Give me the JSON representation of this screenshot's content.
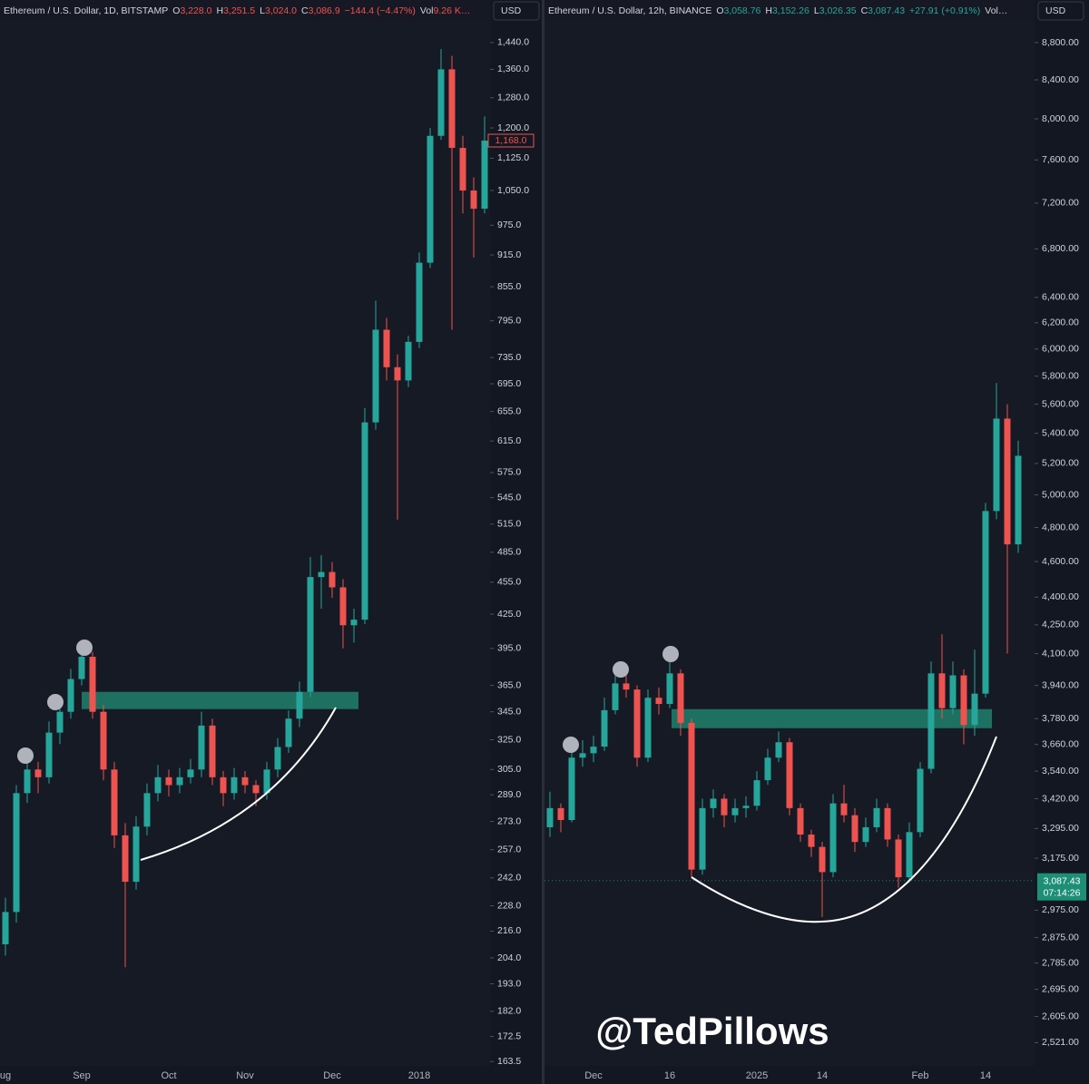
{
  "chart_data": [
    {
      "type": "candlestick",
      "title": "Ethereum / U.S. Dollar, 1D, BITSTAMP",
      "currency": "USD",
      "ohlc": [
        {
          "key": "O",
          "value": "3,228.0"
        },
        {
          "key": "H",
          "value": "3,251.5"
        },
        {
          "key": "L",
          "value": "3,024.0"
        },
        {
          "key": "C",
          "value": "3,086.9"
        }
      ],
      "change": "−144.4 (−4.47%)",
      "volume_label": "Vol",
      "volume": "9.26 K…",
      "header_color": "#ef5350",
      "up_color": "#26a69a",
      "down_color": "#ef5350",
      "log_scale": true,
      "categories": [
        "ug",
        null,
        null,
        null,
        null,
        null,
        null,
        "Sep",
        null,
        null,
        null,
        null,
        null,
        null,
        null,
        "Oct",
        null,
        null,
        null,
        null,
        null,
        null,
        "Nov",
        null,
        null,
        null,
        null,
        null,
        null,
        null,
        "Dec",
        null,
        null,
        null,
        null,
        null,
        null,
        null,
        "2018",
        null,
        null,
        null,
        null,
        null,
        null
      ],
      "open": [
        210,
        225,
        290,
        305,
        300,
        330,
        345,
        370,
        388,
        345,
        305,
        265,
        240,
        270,
        290,
        300,
        295,
        300,
        305,
        335,
        300,
        290,
        300,
        295,
        290,
        305,
        320,
        340,
        360,
        460,
        465,
        450,
        415,
        420,
        640,
        780,
        720,
        700,
        760,
        900,
        1180,
        1360,
        1150,
        1050,
        1010
      ],
      "high": [
        232,
        295,
        312,
        310,
        338,
        352,
        378,
        400,
        392,
        350,
        310,
        272,
        276,
        296,
        308,
        305,
        306,
        312,
        345,
        340,
        304,
        306,
        304,
        298,
        310,
        326,
        346,
        368,
        480,
        482,
        475,
        458,
        430,
        660,
        830,
        800,
        740,
        770,
        920,
        1200,
        1420,
        1400,
        1180,
        1080,
        1230
      ],
      "low": [
        205,
        220,
        284,
        290,
        296,
        322,
        340,
        365,
        340,
        298,
        258,
        200,
        236,
        265,
        285,
        288,
        290,
        296,
        300,
        295,
        282,
        286,
        290,
        282,
        286,
        300,
        316,
        334,
        356,
        430,
        440,
        395,
        400,
        416,
        630,
        700,
        520,
        690,
        750,
        890,
        1170,
        780,
        1000,
        910,
        1000
      ],
      "close": [
        225,
        290,
        305,
        300,
        330,
        345,
        370,
        388,
        345,
        305,
        265,
        240,
        270,
        290,
        300,
        295,
        300,
        305,
        335,
        300,
        290,
        300,
        295,
        290,
        305,
        320,
        340,
        360,
        460,
        465,
        450,
        415,
        420,
        640,
        780,
        720,
        700,
        760,
        900,
        1180,
        1360,
        1150,
        1050,
        1010,
        1168
      ],
      "zone": [
        347,
        360
      ],
      "last_price": {
        "value": 1168,
        "label": "1,168.0"
      },
      "ylim": [
        162,
        1488
      ],
      "yticks": [
        {
          "value": 1440,
          "label": "1,440.0"
        },
        {
          "value": 1360,
          "label": "1,360.0"
        },
        {
          "value": 1280,
          "label": "1,280.0"
        },
        {
          "value": 1200,
          "label": "1,200.0"
        },
        {
          "value": 1125,
          "label": "1,125.0"
        },
        {
          "value": 1050,
          "label": "1,050.0"
        },
        {
          "value": 975,
          "label": "975.0"
        },
        {
          "value": 915,
          "label": "915.0"
        },
        {
          "value": 855,
          "label": "855.0"
        },
        {
          "value": 795,
          "label": "795.0"
        },
        {
          "value": 735,
          "label": "735.0"
        },
        {
          "value": 695,
          "label": "695.0"
        },
        {
          "value": 655,
          "label": "655.0"
        },
        {
          "value": 615,
          "label": "615.0"
        },
        {
          "value": 575,
          "label": "575.0"
        },
        {
          "value": 545,
          "label": "545.0"
        },
        {
          "value": 515,
          "label": "515.0"
        },
        {
          "value": 485,
          "label": "485.0"
        },
        {
          "value": 455,
          "label": "455.0"
        },
        {
          "value": 425,
          "label": "425.0"
        },
        {
          "value": 395,
          "label": "395.0"
        },
        {
          "value": 365,
          "label": "365.0"
        },
        {
          "value": 345,
          "label": "345.0"
        },
        {
          "value": 325,
          "label": "325.0"
        },
        {
          "value": 305,
          "label": "305.0"
        },
        {
          "value": 289,
          "label": "289.0"
        },
        {
          "value": 273,
          "label": "273.0"
        },
        {
          "value": 257,
          "label": "257.0"
        },
        {
          "value": 242,
          "label": "242.0"
        },
        {
          "value": 228,
          "label": "228.0"
        },
        {
          "value": 216,
          "label": "216.0"
        },
        {
          "value": 204,
          "label": "204.0"
        },
        {
          "value": 193,
          "label": "193.0"
        },
        {
          "value": 182,
          "label": "182.0"
        },
        {
          "value": 172.5,
          "label": "172.5"
        },
        {
          "value": 163.5,
          "label": "163.5"
        }
      ]
    },
    {
      "type": "candlestick",
      "title": "Ethereum / U.S. Dollar, 12h, BINANCE",
      "currency": "USD",
      "ohlc": [
        {
          "key": "O",
          "value": "3,058.76"
        },
        {
          "key": "H",
          "value": "3,152.26"
        },
        {
          "key": "L",
          "value": "3,026.35"
        },
        {
          "key": "C",
          "value": "3,087.43"
        }
      ],
      "change": "+27.91 (+0.91%)",
      "volume_label": "Vol…",
      "header_color": "#26a69a",
      "up_color": "#26a69a",
      "down_color": "#ef5350",
      "log_scale": true,
      "categories": [
        null,
        null,
        null,
        null,
        "Dec",
        null,
        null,
        null,
        null,
        null,
        null,
        "16",
        null,
        null,
        null,
        null,
        null,
        null,
        null,
        "2025",
        null,
        null,
        null,
        null,
        null,
        "14",
        null,
        null,
        null,
        null,
        null,
        null,
        null,
        null,
        "Feb",
        null,
        null,
        null,
        null,
        null,
        "14",
        null,
        null,
        null
      ],
      "open": [
        3300,
        3380,
        3330,
        3600,
        3620,
        3650,
        3820,
        3950,
        3920,
        3600,
        3880,
        3850,
        4000,
        3760,
        3130,
        3380,
        3420,
        3350,
        3380,
        3390,
        3500,
        3600,
        3670,
        3380,
        3270,
        3220,
        3120,
        3400,
        3350,
        3240,
        3300,
        3380,
        3250,
        3100,
        3280,
        3550,
        4000,
        3830,
        3990,
        3750,
        3900,
        4900,
        5500,
        4700
      ],
      "high": [
        3450,
        3400,
        3640,
        3680,
        3700,
        3880,
        4040,
        4010,
        3940,
        3920,
        3930,
        4080,
        4020,
        3780,
        3420,
        3460,
        3440,
        3420,
        3430,
        3540,
        3640,
        3720,
        3690,
        3400,
        3290,
        3240,
        3440,
        3480,
        3380,
        3340,
        3420,
        3400,
        3270,
        3320,
        3580,
        4060,
        4200,
        4060,
        4020,
        4120,
        4950,
        5750,
        5600,
        5350
      ],
      "low": [
        3260,
        3280,
        3320,
        3560,
        3580,
        3630,
        3800,
        3880,
        3560,
        3580,
        3800,
        3830,
        3700,
        3100,
        3110,
        3340,
        3300,
        3320,
        3340,
        3370,
        3480,
        3580,
        3350,
        3240,
        3180,
        2950,
        3100,
        3320,
        3200,
        3220,
        3280,
        3220,
        3060,
        3080,
        3260,
        3530,
        3780,
        3800,
        3660,
        3700,
        3880,
        4850,
        4100,
        4650
      ],
      "close": [
        3380,
        3330,
        3600,
        3620,
        3650,
        3820,
        3950,
        3920,
        3600,
        3880,
        3850,
        4000,
        3760,
        3130,
        3380,
        3420,
        3350,
        3380,
        3390,
        3500,
        3600,
        3670,
        3380,
        3270,
        3220,
        3120,
        3400,
        3350,
        3240,
        3300,
        3380,
        3250,
        3100,
        3280,
        3550,
        4000,
        3830,
        3990,
        3750,
        3900,
        4900,
        5500,
        4700,
        5250
      ],
      "zone": [
        3735,
        3825
      ],
      "last_price": {
        "value": 3087.43,
        "label": "3,087.43",
        "countdown": "07:14:26"
      },
      "ylim": [
        2449,
        8971
      ],
      "yticks": [
        {
          "value": 8800,
          "label": "8,800.00"
        },
        {
          "value": 8400,
          "label": "8,400.00"
        },
        {
          "value": 8000,
          "label": "8,000.00"
        },
        {
          "value": 7600,
          "label": "7,600.00"
        },
        {
          "value": 7200,
          "label": "7,200.00"
        },
        {
          "value": 6800,
          "label": "6,800.00"
        },
        {
          "value": 6400,
          "label": "6,400.00"
        },
        {
          "value": 6200,
          "label": "6,200.00"
        },
        {
          "value": 6000,
          "label": "6,000.00"
        },
        {
          "value": 5800,
          "label": "5,800.00"
        },
        {
          "value": 5600,
          "label": "5,600.00"
        },
        {
          "value": 5400,
          "label": "5,400.00"
        },
        {
          "value": 5200,
          "label": "5,200.00"
        },
        {
          "value": 5000,
          "label": "5,000.00"
        },
        {
          "value": 4800,
          "label": "4,800.00"
        },
        {
          "value": 4600,
          "label": "4,600.00"
        },
        {
          "value": 4400,
          "label": "4,400.00"
        },
        {
          "value": 4250,
          "label": "4,250.00"
        },
        {
          "value": 4100,
          "label": "4,100.00"
        },
        {
          "value": 3940,
          "label": "3,940.00"
        },
        {
          "value": 3780,
          "label": "3,780.00"
        },
        {
          "value": 3660,
          "label": "3,660.00"
        },
        {
          "value": 3540,
          "label": "3,540.00"
        },
        {
          "value": 3420,
          "label": "3,420.00"
        },
        {
          "value": 3295,
          "label": "3,295.00"
        },
        {
          "value": 3175,
          "label": "3,175.00"
        },
        {
          "value": 2975,
          "label": "2,975.00"
        },
        {
          "value": 2875,
          "label": "2,875.00"
        },
        {
          "value": 2785,
          "label": "2,785.00"
        },
        {
          "value": 2695,
          "label": "2,695.00"
        },
        {
          "value": 2605,
          "label": "2,605.00"
        },
        {
          "value": 2521,
          "label": "2,521.00"
        }
      ]
    }
  ],
  "watermark": "@TedPillows"
}
